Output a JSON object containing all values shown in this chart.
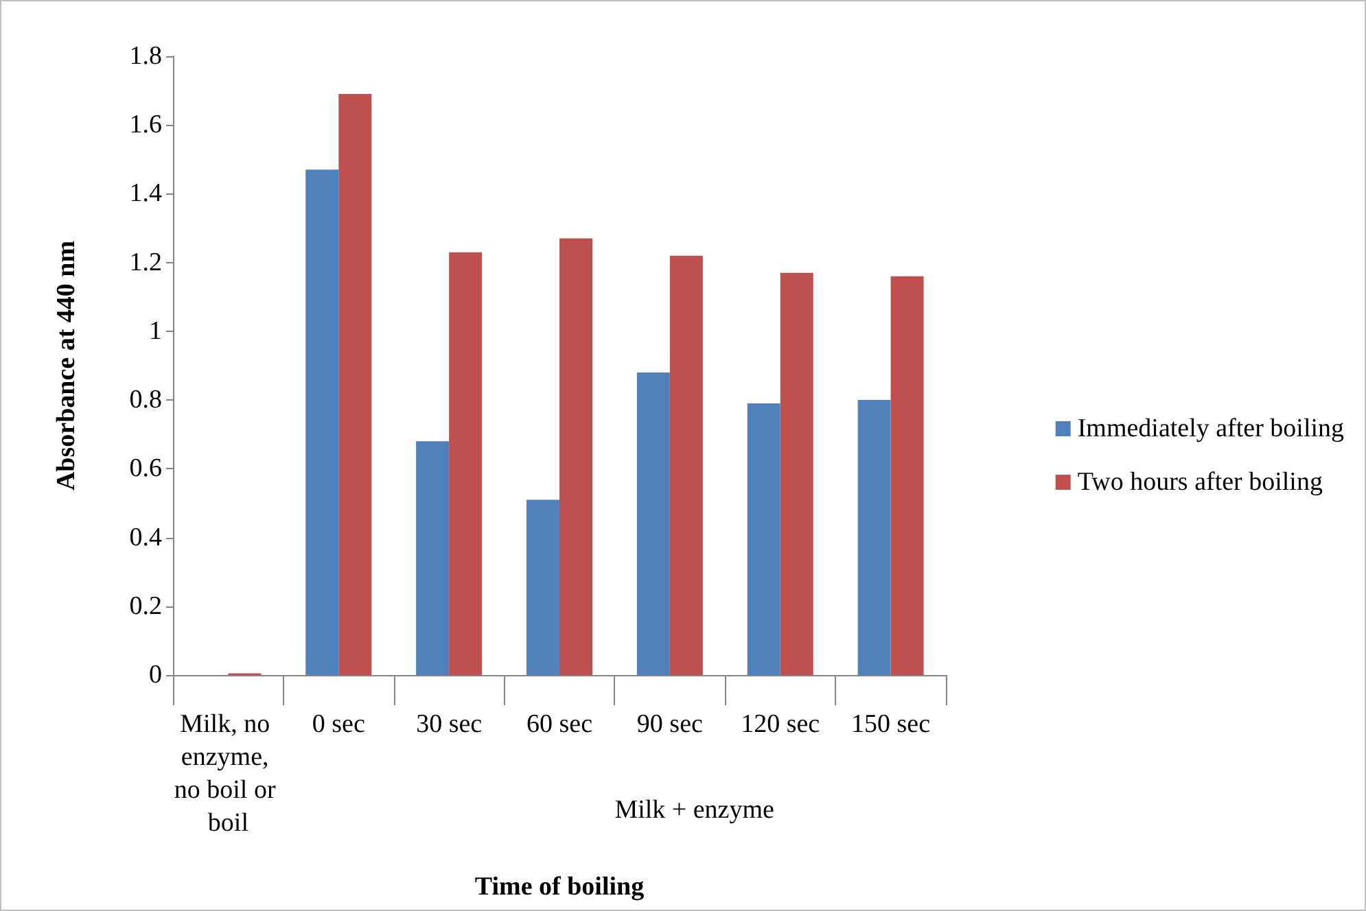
{
  "chart_data": {
    "type": "bar",
    "categories": [
      "Milk, no enzyme, no boil or boil",
      "0 sec",
      "30 sec",
      "60 sec",
      "90 sec",
      "120 sec",
      "150 sec"
    ],
    "series": [
      {
        "name": "Immediately after boiling",
        "color": "#4f81bd",
        "values": [
          0,
          1.47,
          0.68,
          0.51,
          0.88,
          0.79,
          0.8
        ]
      },
      {
        "name": "Two hours after boiling",
        "color": "#c0504d",
        "values": [
          0.005,
          1.69,
          1.23,
          1.27,
          1.22,
          1.17,
          1.16
        ]
      }
    ],
    "xlabel": "Time of boiling",
    "ylabel": "Absorbance at 440 nm",
    "annotations": [
      "Milk + enzyme"
    ],
    "ylim": [
      0,
      1.8
    ],
    "yticks": [
      0,
      0.2,
      0.4,
      0.6,
      0.8,
      1,
      1.2,
      1.4,
      1.6,
      1.8
    ],
    "grid": false,
    "legend": "right"
  }
}
